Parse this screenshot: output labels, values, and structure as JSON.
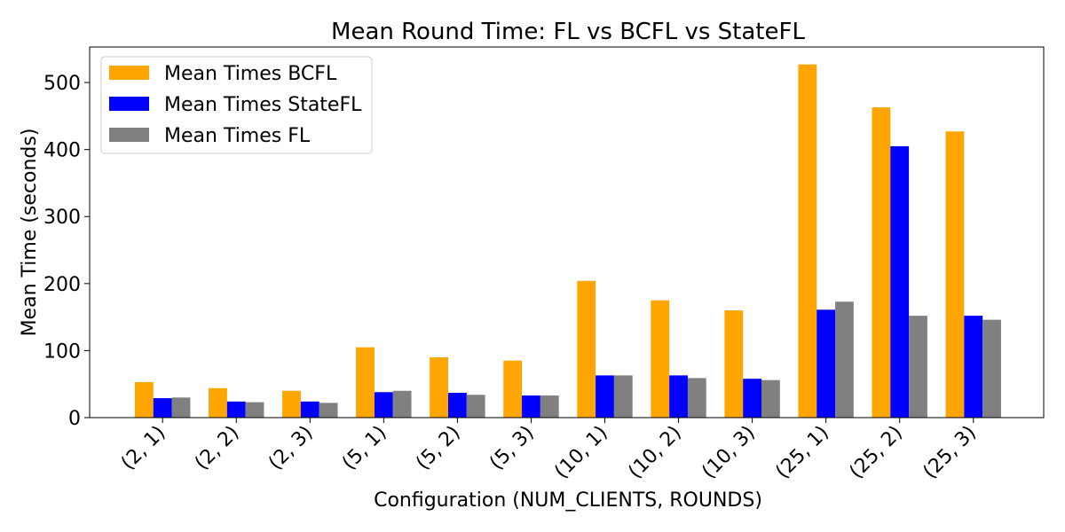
{
  "chart_data": {
    "type": "bar",
    "title": "Mean Round Time: FL vs BCFL vs StateFL",
    "xlabel": "Configuration (NUM_CLIENTS, ROUNDS)",
    "ylabel": "Mean Time (seconds)",
    "categories": [
      "(2, 1)",
      "(2, 2)",
      "(2, 3)",
      "(5, 1)",
      "(5, 2)",
      "(5, 3)",
      "(10, 1)",
      "(10, 2)",
      "(10, 3)",
      "(25, 1)",
      "(25, 2)",
      "(25, 3)"
    ],
    "series": [
      {
        "name": "Mean Times BCFL",
        "color": "#ffa500",
        "values": [
          53,
          44,
          40,
          105,
          90,
          85,
          204,
          175,
          160,
          527,
          463,
          427
        ]
      },
      {
        "name": "Mean Times StateFL",
        "color": "#0000ff",
        "values": [
          29,
          24,
          24,
          38,
          37,
          33,
          63,
          63,
          58,
          161,
          405,
          152
        ]
      },
      {
        "name": "Mean Times FL",
        "color": "#808080",
        "values": [
          30,
          23,
          22,
          40,
          34,
          33,
          63,
          59,
          56,
          173,
          152,
          146
        ]
      }
    ],
    "ylim": [
      0,
      553
    ],
    "yticks": [
      0,
      100,
      200,
      300,
      400,
      500
    ],
    "grid": false,
    "legend_position": "top-left"
  }
}
